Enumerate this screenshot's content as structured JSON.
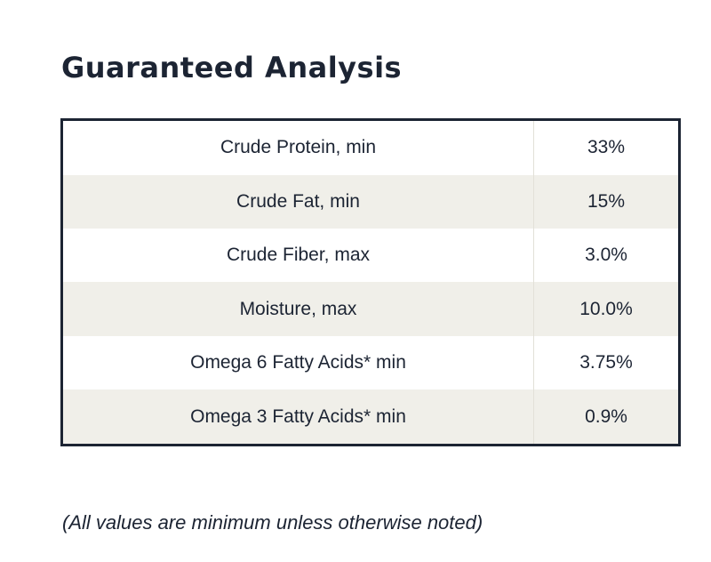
{
  "title": "Guaranteed Analysis",
  "table": {
    "rows": [
      {
        "nutrient": "Crude Protein, min",
        "value": "33%"
      },
      {
        "nutrient": "Crude Fat, min",
        "value": "15%"
      },
      {
        "nutrient": "Crude Fiber, max",
        "value": "3.0%"
      },
      {
        "nutrient": "Moisture, max",
        "value": "10.0%"
      },
      {
        "nutrient": "Omega 6 Fatty Acids* min",
        "value": "3.75%"
      },
      {
        "nutrient": "Omega 3 Fatty Acids* min",
        "value": "0.9%"
      }
    ]
  },
  "note": "(All values are minimum unless otherwise noted)",
  "colors": {
    "text": "#1c2433",
    "border": "#1c2433",
    "row_alt": "#f0efe9"
  }
}
